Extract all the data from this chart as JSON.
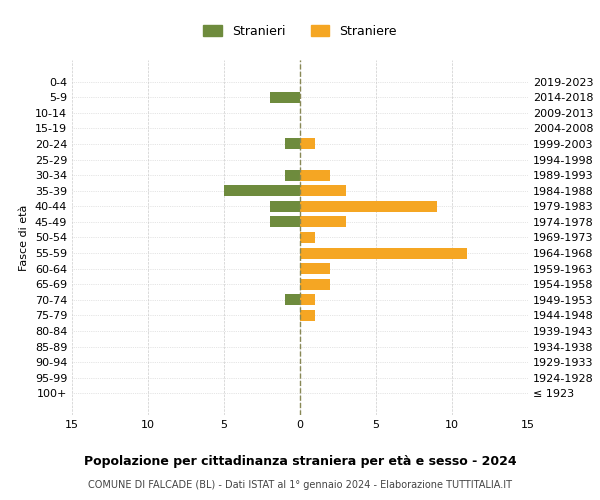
{
  "age_groups": [
    "100+",
    "95-99",
    "90-94",
    "85-89",
    "80-84",
    "75-79",
    "70-74",
    "65-69",
    "60-64",
    "55-59",
    "50-54",
    "45-49",
    "40-44",
    "35-39",
    "30-34",
    "25-29",
    "20-24",
    "15-19",
    "10-14",
    "5-9",
    "0-4"
  ],
  "birth_years": [
    "≤ 1923",
    "1924-1928",
    "1929-1933",
    "1934-1938",
    "1939-1943",
    "1944-1948",
    "1949-1953",
    "1954-1958",
    "1959-1963",
    "1964-1968",
    "1969-1973",
    "1974-1978",
    "1979-1983",
    "1984-1988",
    "1989-1993",
    "1994-1998",
    "1999-2003",
    "2004-2008",
    "2009-2013",
    "2014-2018",
    "2019-2023"
  ],
  "males": [
    0,
    0,
    0,
    0,
    0,
    0,
    1,
    0,
    0,
    0,
    0,
    2,
    2,
    5,
    1,
    0,
    1,
    0,
    0,
    2,
    0
  ],
  "females": [
    0,
    0,
    0,
    0,
    0,
    1,
    1,
    2,
    2,
    11,
    1,
    3,
    9,
    3,
    2,
    0,
    1,
    0,
    0,
    0,
    0
  ],
  "male_color": "#6E8B3D",
  "female_color": "#F5A623",
  "title": "Popolazione per cittadinanza straniera per età e sesso - 2024",
  "subtitle": "COMUNE DI FALCADE (BL) - Dati ISTAT al 1° gennaio 2024 - Elaborazione TUTTITALIA.IT",
  "ylabel_left": "Fasce di età",
  "legend_male": "Stranieri",
  "legend_female": "Straniere",
  "xlim": 15,
  "background_color": "#ffffff",
  "grid_color": "#cccccc"
}
